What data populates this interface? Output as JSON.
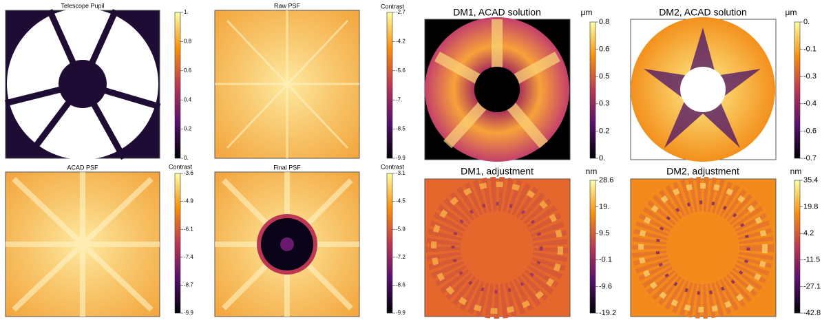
{
  "panels": [
    {
      "title": "Telescope Pupil",
      "colorbar": {
        "ticks": [
          "1.",
          "0.8",
          "0.6",
          "0.4",
          "0.2",
          "0."
        ]
      }
    },
    {
      "title": "Raw PSF",
      "colorbar": {
        "label": "Contrast",
        "ticks": [
          "-2.7",
          "-4.2",
          "-5.6",
          "-7.",
          "-8.5",
          "-9.9"
        ]
      }
    },
    {
      "title": "DM1, ACAD solution",
      "colorbar": {
        "label": "μm",
        "ticks": [
          "0.8",
          "0.6",
          "0.5",
          "0.3",
          "0.2",
          "0."
        ]
      }
    },
    {
      "title": "DM2, ACAD solution",
      "colorbar": {
        "label": "μm",
        "ticks": [
          "0.",
          "-0.1",
          "-0.3",
          "-0.4",
          "-0.6",
          "-0.7"
        ]
      }
    },
    {
      "title": "ACAD PSF",
      "colorbar": {
        "label": "Contrast",
        "ticks": [
          "-3.6",
          "-4.9",
          "-6.1",
          "-7.4",
          "-8.7",
          "-9.9"
        ]
      }
    },
    {
      "title": "Final PSF",
      "colorbar": {
        "label": "Contrast",
        "ticks": [
          "-3.1",
          "-4.5",
          "-5.9",
          "-7.2",
          "-8.6",
          "-9.9"
        ]
      }
    },
    {
      "title": "DM1, adjustment",
      "colorbar": {
        "label": "nm",
        "ticks": [
          "28.6",
          "19.",
          "9.5",
          "-0.1",
          "-9.6",
          "-19.2"
        ]
      }
    },
    {
      "title": "DM2, adjustment",
      "colorbar": {
        "label": "nm",
        "ticks": [
          "35.4",
          "19.8",
          "4.2",
          "-11.5",
          "-27.1",
          "-42.8"
        ]
      }
    }
  ]
}
